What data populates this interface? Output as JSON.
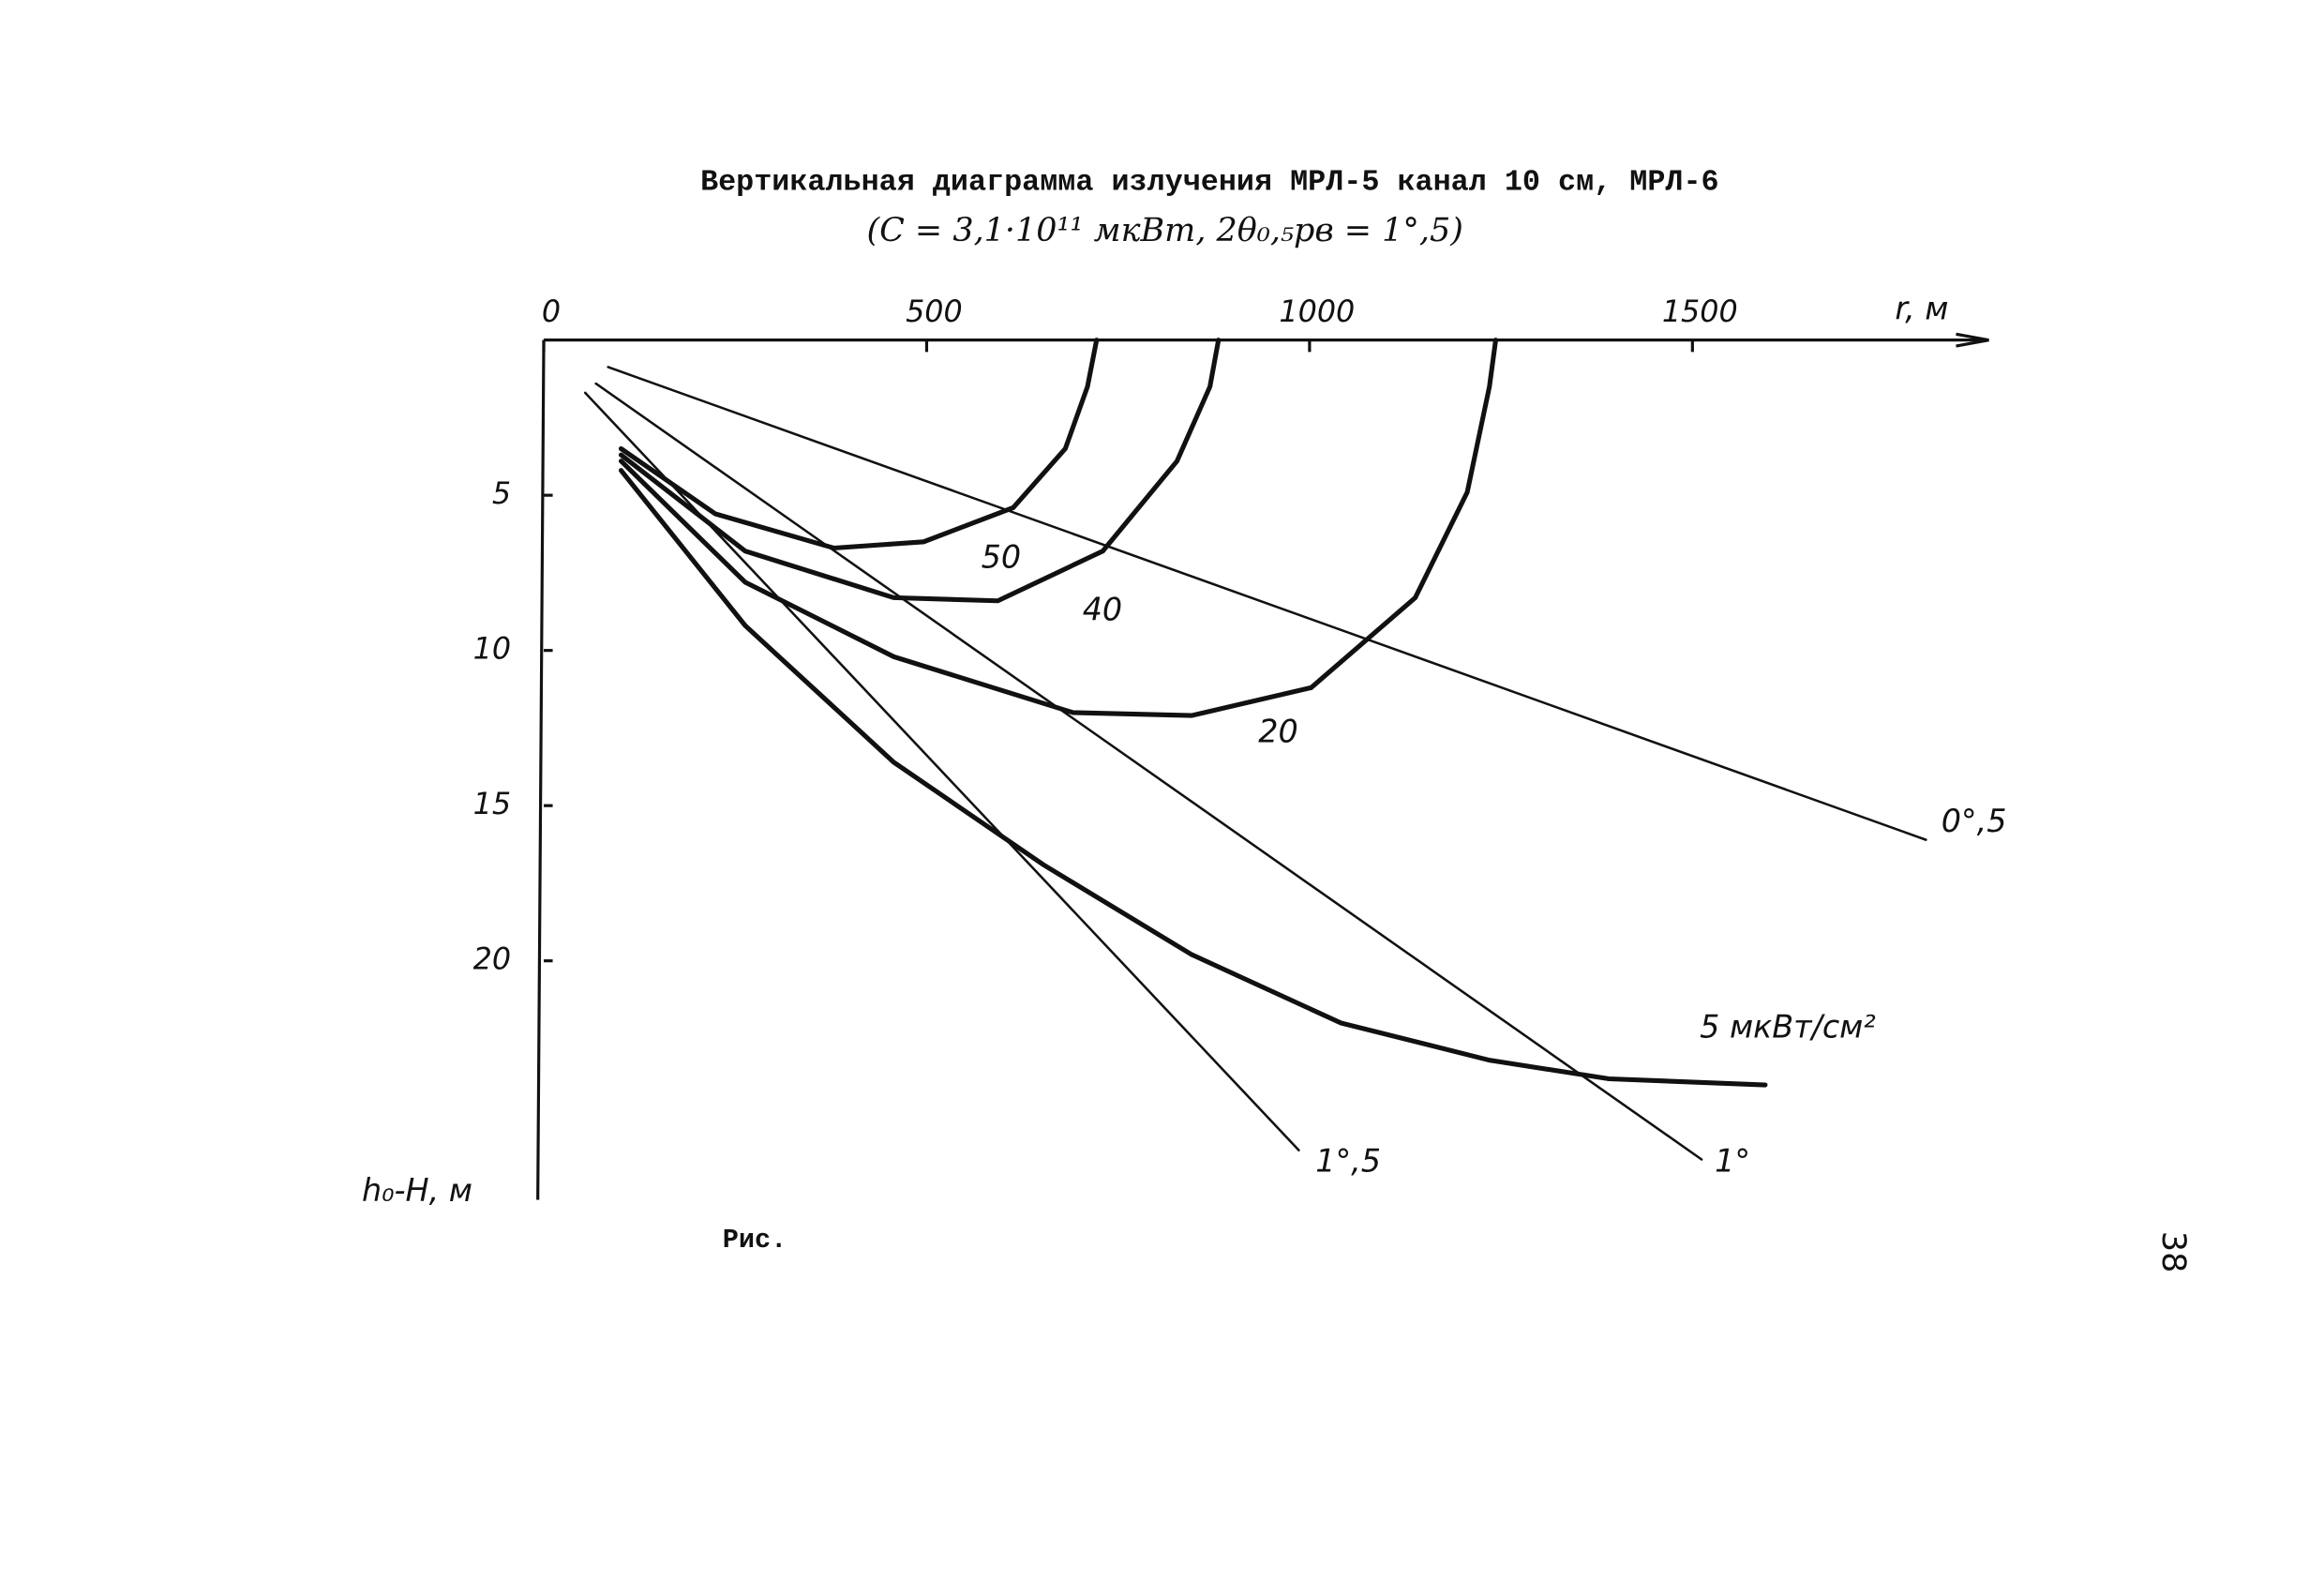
{
  "chart_data": {
    "type": "line",
    "title": "Вертикальная диаграмма излучения МРЛ-5 канал 10 см, МРЛ-6",
    "subtitle": "(C = 3,1·10¹¹ мкВт, 2θ₀,₅рв = 1°,5)",
    "x_label": "r, м",
    "y_label": "h₀-H, м",
    "xlim": [
      0,
      1887
    ],
    "ylim": [
      0,
      27.7
    ],
    "xticks": [
      0,
      500,
      1000,
      1500
    ],
    "yticks": [
      5,
      10,
      15,
      20
    ],
    "color": "#111111",
    "series": [
      {
        "name": "0°,5",
        "x": [
          84,
          1805
        ],
        "values": [
          0.87,
          16.1
        ]
      },
      {
        "name": "1°",
        "x": [
          68,
          1512
        ],
        "values": [
          1.4,
          26.4
        ]
      },
      {
        "name": "1°,5",
        "x": [
          54,
          986
        ],
        "values": [
          1.7,
          26.1
        ]
      },
      {
        "name": "50",
        "x": [
          101,
          224,
          379,
          496,
          613,
          681,
          710,
          722
        ],
        "values": [
          3.5,
          5.6,
          6.7,
          6.5,
          5.4,
          3.5,
          1.5,
          0
        ]
      },
      {
        "name": "40",
        "x": [
          101,
          263,
          457,
          593,
          730,
          827,
          870,
          881
        ],
        "values": [
          3.7,
          6.8,
          8.3,
          8.4,
          6.8,
          3.9,
          1.5,
          0
        ]
      },
      {
        "name": "20",
        "x": [
          101,
          263,
          457,
          691,
          846,
          1002,
          1138,
          1206,
          1235,
          1243
        ],
        "values": [
          3.9,
          7.8,
          10.2,
          12.0,
          12.1,
          11.2,
          8.3,
          4.9,
          1.5,
          0
        ]
      },
      {
        "name": "5 мкВт/см²",
        "x": [
          101,
          263,
          457,
          652,
          846,
          1041,
          1235,
          1391,
          1595
        ],
        "values": [
          4.2,
          9.2,
          13.6,
          16.9,
          19.8,
          22.0,
          23.2,
          23.8,
          24.0
        ]
      }
    ]
  },
  "caption": "Рис.",
  "page_number": "38"
}
